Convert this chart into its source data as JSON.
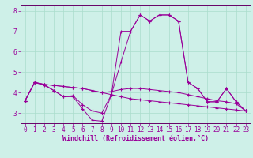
{
  "xlabel": "Windchill (Refroidissement éolien,°C)",
  "bg_color": "#cef0e8",
  "grid_color": "#aaddcc",
  "line_color": "#990099",
  "spine_color": "#660066",
  "xlim": [
    -0.5,
    23.5
  ],
  "ylim": [
    2.5,
    8.3
  ],
  "yticks": [
    3,
    4,
    5,
    6,
    7,
    8
  ],
  "xticks": [
    0,
    1,
    2,
    3,
    4,
    5,
    6,
    7,
    8,
    9,
    10,
    11,
    12,
    13,
    14,
    15,
    16,
    17,
    18,
    19,
    20,
    21,
    22,
    23
  ],
  "series": [
    [
      3.6,
      4.5,
      4.4,
      4.1,
      3.8,
      3.8,
      3.2,
      2.65,
      2.6,
      3.9,
      7.0,
      7.0,
      7.8,
      7.5,
      7.8,
      7.8,
      7.5,
      4.5,
      4.2,
      3.55,
      3.55,
      4.2,
      3.55,
      3.1
    ],
    [
      3.6,
      4.5,
      4.35,
      4.1,
      3.8,
      3.85,
      3.4,
      3.1,
      3.0,
      3.9,
      5.5,
      7.0,
      7.8,
      7.5,
      7.8,
      7.8,
      7.5,
      4.5,
      4.2,
      3.55,
      3.55,
      4.2,
      3.55,
      3.1
    ],
    [
      3.6,
      4.5,
      4.4,
      4.35,
      4.3,
      4.25,
      4.2,
      4.1,
      4.0,
      4.05,
      4.15,
      4.2,
      4.2,
      4.15,
      4.1,
      4.05,
      4.0,
      3.9,
      3.8,
      3.7,
      3.6,
      3.55,
      3.45,
      3.1
    ],
    [
      3.6,
      4.5,
      4.4,
      4.35,
      4.3,
      4.25,
      4.2,
      4.1,
      4.0,
      3.9,
      3.8,
      3.7,
      3.65,
      3.6,
      3.55,
      3.5,
      3.45,
      3.4,
      3.35,
      3.3,
      3.25,
      3.2,
      3.15,
      3.1
    ]
  ],
  "tick_fontsize": 5.5,
  "xlabel_fontsize": 6.0
}
